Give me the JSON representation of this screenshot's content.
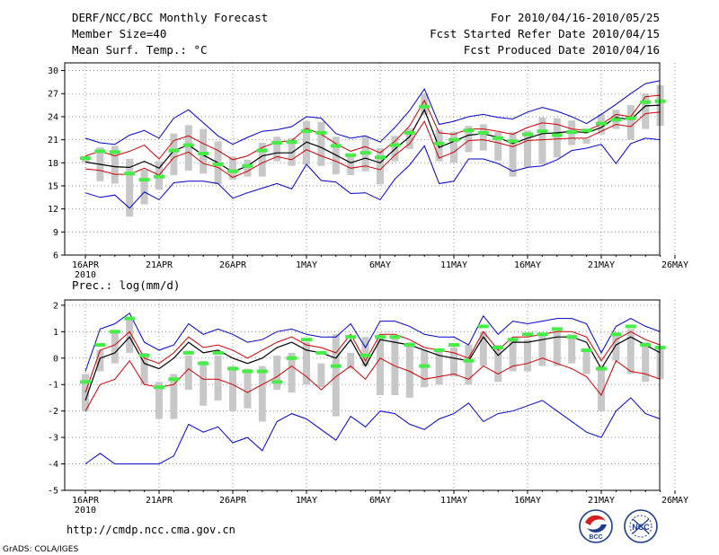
{
  "header": {
    "title": "DERF/NCC/BCC Monthly Forecast",
    "member_size": "Member Size=40",
    "variable": "Mean Surf. Temp.: °C",
    "period": "For 2010/04/16-2010/05/25",
    "started": "Fcst Started Refer Date 2010/04/15",
    "produced": "Fcst Produced Date 2010/04/16"
  },
  "footer": {
    "url": "http://cmdp.ncc.cma.gov.cn",
    "credit": "GrADS: COLA/IGES",
    "logo_bcc": "BCC",
    "logo_ncc": "NCC"
  },
  "colors": {
    "envelope": "#0000cc",
    "spread": "#cc0000",
    "mean": "#000000",
    "box": "#c8c8c8",
    "marker": "#44ee44",
    "grid": "#777777"
  },
  "chart_data": [
    {
      "type": "line",
      "title": "Mean Surf. Temp.: °C",
      "xlabel": "",
      "ylabel": "°C",
      "ylim": [
        6,
        31
      ],
      "yticks": [
        6,
        9,
        12,
        15,
        18,
        21,
        24,
        27,
        30
      ],
      "xticks": [
        "16APR",
        "21APR",
        "26APR",
        "1MAY",
        "6MAY",
        "11MAY",
        "16MAY",
        "21MAY",
        "26MAY"
      ],
      "x_year": "2010",
      "grid": true,
      "x": [
        1,
        2,
        3,
        4,
        5,
        6,
        7,
        8,
        9,
        10,
        11,
        12,
        13,
        14,
        15,
        16,
        17,
        18,
        19,
        20,
        21,
        22,
        23,
        24,
        25,
        26,
        27,
        28,
        29,
        30,
        31,
        32,
        33,
        34,
        35,
        36,
        37,
        38,
        39,
        40
      ],
      "series": [
        {
          "name": "max",
          "values": [
            21.2,
            20.6,
            20.4,
            21.6,
            22.2,
            21.2,
            23.8,
            24.9,
            23.2,
            21.5,
            20.4,
            21.3,
            22.1,
            22.3,
            22.7,
            24.0,
            23.8,
            21.8,
            21.2,
            21.5,
            20.7,
            22.6,
            24.8,
            27.6,
            23.0,
            23.4,
            24.0,
            24.3,
            23.9,
            23.7,
            24.6,
            25.2,
            24.7,
            24.0,
            23.1,
            24.3,
            25.6,
            27.0,
            28.3,
            28.7
          ]
        },
        {
          "name": "mean_plus_sd",
          "values": [
            18.9,
            19.5,
            18.9,
            19.5,
            20.3,
            18.5,
            20.9,
            21.5,
            20.5,
            19.6,
            18.4,
            18.9,
            20.0,
            20.7,
            20.9,
            22.5,
            21.7,
            20.5,
            19.5,
            20.1,
            19.3,
            20.8,
            22.8,
            26.1,
            21.9,
            21.7,
            22.4,
            22.4,
            22.1,
            21.7,
            22.6,
            23.2,
            23.0,
            22.4,
            22.2,
            23.0,
            24.3,
            24.0,
            26.6,
            26.8
          ]
        },
        {
          "name": "mean",
          "values": [
            18.1,
            17.8,
            17.5,
            17.4,
            18.2,
            17.3,
            19.6,
            20.3,
            19.0,
            18.0,
            16.8,
            17.6,
            18.9,
            19.3,
            19.3,
            20.7,
            20.0,
            19.0,
            18.0,
            18.6,
            18.0,
            19.8,
            21.4,
            24.9,
            20.0,
            20.8,
            21.6,
            21.8,
            21.3,
            20.5,
            21.2,
            21.8,
            21.9,
            22.1,
            21.9,
            22.6,
            23.9,
            23.6,
            25.4,
            25.5
          ]
        },
        {
          "name": "mean_minus_sd",
          "values": [
            17.2,
            17.0,
            16.5,
            16.5,
            17.3,
            16.4,
            18.7,
            19.4,
            17.9,
            17.4,
            16.1,
            16.9,
            18.0,
            18.8,
            18.4,
            19.7,
            18.9,
            18.2,
            17.3,
            17.6,
            17.1,
            19.0,
            20.5,
            23.4,
            18.6,
            19.4,
            20.9,
            21.0,
            20.6,
            20.1,
            20.9,
            21.0,
            21.1,
            21.2,
            21.2,
            22.1,
            23.0,
            22.7,
            24.4,
            24.6
          ]
        },
        {
          "name": "min",
          "values": [
            14.1,
            13.5,
            13.8,
            12.1,
            14.2,
            13.2,
            15.4,
            15.6,
            15.6,
            15.3,
            13.4,
            14.1,
            14.7,
            15.3,
            14.6,
            17.8,
            15.7,
            15.5,
            14.0,
            14.1,
            13.2,
            15.9,
            17.7,
            20.2,
            15.3,
            15.6,
            18.5,
            18.5,
            17.9,
            16.9,
            17.4,
            17.6,
            18.4,
            19.6,
            19.9,
            20.4,
            17.9,
            20.5,
            21.2,
            21.0
          ]
        },
        {
          "name": "box_top",
          "values": [
            18.9,
            20.0,
            20.2,
            18.5,
            17.1,
            18.2,
            21.8,
            22.9,
            22.4,
            20.8,
            18.8,
            18.4,
            20.6,
            21.4,
            21.2,
            23.4,
            23.3,
            21.4,
            19.2,
            21.4,
            19.9,
            21.5,
            22.5,
            27.0,
            22.3,
            22.0,
            22.8,
            23.0,
            22.0,
            22.0,
            22.2,
            23.9,
            23.8,
            23.5,
            21.1,
            24.3,
            24.9,
            25.5,
            27.0,
            28.1
          ]
        },
        {
          "name": "box_bottom",
          "values": [
            18.0,
            15.6,
            15.3,
            11.0,
            12.6,
            14.5,
            16.4,
            17.0,
            16.6,
            15.2,
            15.8,
            16.2,
            16.2,
            18.2,
            17.6,
            17.8,
            17.6,
            16.5,
            16.4,
            16.9,
            15.2,
            18.2,
            19.8,
            24.2,
            18.2,
            18.0,
            19.4,
            19.6,
            18.3,
            16.2,
            17.4,
            17.8,
            18.7,
            20.3,
            20.5,
            21.7,
            22.4,
            21.0,
            22.4,
            22.8
          ]
        },
        {
          "name": "marker",
          "values": [
            18.6,
            19.5,
            19.4,
            16.6,
            15.8,
            16.2,
            19.6,
            20.3,
            19.2,
            17.8,
            16.9,
            17.6,
            19.6,
            20.6,
            20.7,
            22.1,
            21.9,
            20.2,
            19.0,
            19.3,
            18.7,
            20.3,
            21.9,
            25.3,
            20.5,
            21.0,
            22.2,
            21.9,
            21.2,
            20.8,
            21.7,
            22.1,
            21.6,
            22.0,
            22.2,
            23.1,
            23.6,
            23.8,
            25.9,
            26.0
          ]
        }
      ]
    },
    {
      "type": "line",
      "title": "Prec.: log(mm/d)",
      "xlabel": "",
      "ylabel": "log(mm/d)",
      "ylim": [
        -5,
        2.2
      ],
      "yticks": [
        -5,
        -4,
        -3,
        -2,
        -1,
        0,
        1,
        2
      ],
      "xticks": [
        "16APR",
        "21APR",
        "26APR",
        "1MAY",
        "6MAY",
        "11MAY",
        "16MAY",
        "21MAY",
        "26MAY"
      ],
      "x_year": "2010",
      "grid": true,
      "x": [
        1,
        2,
        3,
        4,
        5,
        6,
        7,
        8,
        9,
        10,
        11,
        12,
        13,
        14,
        15,
        16,
        17,
        18,
        19,
        20,
        21,
        22,
        23,
        24,
        25,
        26,
        27,
        28,
        29,
        30,
        31,
        32,
        33,
        34,
        35,
        36,
        37,
        38,
        39,
        40
      ],
      "series": [
        {
          "name": "max",
          "values": [
            -0.5,
            1.1,
            1.3,
            1.7,
            0.6,
            0.3,
            0.5,
            1.3,
            0.9,
            1.1,
            0.9,
            0.6,
            0.7,
            1.0,
            1.1,
            0.9,
            0.8,
            0.8,
            1.3,
            0.4,
            1.4,
            1.4,
            1.2,
            0.9,
            0.8,
            0.8,
            0.5,
            1.6,
            0.9,
            1.4,
            1.3,
            1.4,
            1.5,
            1.5,
            1.3,
            0.2,
            1.2,
            1.5,
            1.2,
            1.0
          ]
        },
        {
          "name": "mean_plus_sd",
          "values": [
            -1.3,
            0.3,
            0.5,
            1.0,
            0.0,
            -0.2,
            0.2,
            0.8,
            0.4,
            0.5,
            0.3,
            0.0,
            0.3,
            0.6,
            0.8,
            0.5,
            0.4,
            0.2,
            0.9,
            -0.1,
            0.9,
            0.9,
            0.7,
            0.4,
            0.3,
            0.2,
            0.0,
            1.0,
            0.3,
            0.8,
            0.8,
            0.9,
            1.0,
            1.0,
            0.8,
            -0.1,
            0.7,
            1.0,
            0.7,
            0.5
          ]
        },
        {
          "name": "mean",
          "values": [
            -1.6,
            0.0,
            0.2,
            0.8,
            -0.2,
            -0.4,
            0.0,
            0.6,
            0.2,
            0.3,
            0.0,
            -0.2,
            0.0,
            0.4,
            0.6,
            0.3,
            0.2,
            0.0,
            0.7,
            -0.3,
            0.7,
            0.6,
            0.5,
            0.3,
            0.1,
            0.0,
            -0.1,
            0.8,
            0.1,
            0.6,
            0.6,
            0.7,
            0.8,
            0.8,
            0.6,
            -0.4,
            0.5,
            0.8,
            0.5,
            0.2
          ]
        },
        {
          "name": "mean_minus_sd",
          "values": [
            -2.0,
            -1.0,
            -0.8,
            -0.1,
            -1.0,
            -1.1,
            -1.0,
            -0.4,
            -0.8,
            -0.8,
            -1.0,
            -1.3,
            -1.0,
            -0.7,
            -0.3,
            -0.7,
            -1.2,
            -0.7,
            -0.3,
            -0.8,
            0.0,
            -0.3,
            -0.5,
            -0.8,
            -0.7,
            -0.6,
            -0.8,
            -0.3,
            -0.6,
            -0.3,
            -0.2,
            0.0,
            -0.2,
            -0.4,
            -0.7,
            -1.4,
            -0.1,
            -0.5,
            -0.6,
            -0.8
          ]
        },
        {
          "name": "min",
          "values": [
            -4.0,
            -3.6,
            -4.0,
            -4.0,
            -4.0,
            -4.0,
            -3.7,
            -2.5,
            -2.8,
            -2.6,
            -3.2,
            -3.0,
            -3.5,
            -2.4,
            -2.1,
            -2.3,
            -2.7,
            -3.1,
            -2.2,
            -2.6,
            -2.0,
            -2.1,
            -2.5,
            -2.7,
            -2.3,
            -2.1,
            -1.7,
            -2.4,
            -2.1,
            -2.0,
            -1.8,
            -1.6,
            -2.0,
            -2.4,
            -2.8,
            -3.0,
            -2.0,
            -1.5,
            -2.1,
            -2.3
          ]
        },
        {
          "name": "box_top",
          "values": [
            -0.6,
            0.3,
            1.0,
            1.5,
            0.2,
            -0.9,
            -0.6,
            0.1,
            -0.1,
            0.1,
            -0.3,
            -0.4,
            -0.3,
            0.1,
            0.2,
            0.6,
            -0.2,
            0.9,
            0.2,
            0.8,
            0.9,
            0.8,
            0.6,
            0.3,
            0.3,
            0.4,
            0.5,
            1.0,
            0.5,
            0.7,
            0.7,
            0.9,
            1.0,
            0.9,
            0.3,
            -0.3,
            0.9,
            1.1,
            0.6,
            0.4
          ]
        },
        {
          "name": "box_bottom",
          "values": [
            -2.0,
            -0.5,
            -0.2,
            0.2,
            -1.0,
            -2.3,
            -2.3,
            -1.2,
            -1.8,
            -1.6,
            -2.0,
            -1.9,
            -2.4,
            -1.2,
            -1.3,
            -1.0,
            -1.1,
            -2.2,
            -0.4,
            -0.3,
            -1.4,
            -1.4,
            -1.5,
            -1.1,
            -1.0,
            -0.7,
            -1.0,
            -0.3,
            -0.9,
            -0.5,
            -0.5,
            -0.3,
            -0.3,
            -0.2,
            -0.6,
            -2.0,
            -0.1,
            -0.6,
            -0.9,
            -0.8
          ]
        },
        {
          "name": "marker",
          "values": [
            -0.9,
            0.5,
            1.0,
            1.5,
            0.1,
            -1.1,
            -0.8,
            0.2,
            -0.2,
            0.2,
            -0.4,
            -0.5,
            -0.5,
            -0.9,
            0.0,
            0.7,
            0.2,
            -0.3,
            0.8,
            0.1,
            0.8,
            0.8,
            0.5,
            -0.3,
            0.3,
            0.5,
            -0.1,
            1.2,
            0.4,
            0.7,
            0.9,
            0.9,
            1.1,
            0.8,
            0.3,
            -0.4,
            0.9,
            1.2,
            0.5,
            0.4
          ]
        }
      ]
    }
  ]
}
